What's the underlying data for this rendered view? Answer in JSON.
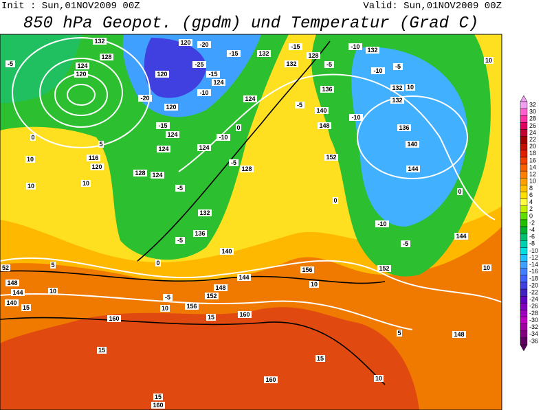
{
  "header": {
    "init": "Init : Sun,01NOV2009 00Z",
    "valid": "Valid: Sun,01NOV2009 00Z",
    "title": "850 hPa Geopot. (gpdm) und Temperatur (Grad C)"
  },
  "colorbar": {
    "levels": [
      32,
      30,
      28,
      26,
      24,
      22,
      20,
      18,
      16,
      14,
      12,
      10,
      8,
      6,
      4,
      2,
      0,
      -2,
      -4,
      -6,
      -8,
      -10,
      -12,
      -14,
      -16,
      -18,
      -20,
      -22,
      -24,
      -26,
      -28,
      -30,
      -32,
      -34,
      -36
    ],
    "colors": [
      "#f0a0f0",
      "#ff60d0",
      "#ff30a0",
      "#e00060",
      "#c00030",
      "#a00000",
      "#c01000",
      "#e02000",
      "#f04000",
      "#f86000",
      "#ff8000",
      "#ffa000",
      "#ffc000",
      "#ffe000",
      "#ffff40",
      "#c0f000",
      "#60e000",
      "#20c000",
      "#00b030",
      "#00c070",
      "#00d0b0",
      "#00e0e0",
      "#20c0ff",
      "#40a0ff",
      "#4080ff",
      "#4060ff",
      "#4040e0",
      "#4020c0",
      "#6000c0",
      "#8000c0",
      "#a000c0",
      "#c000c0",
      "#a000a0",
      "#800080",
      "#600060"
    ]
  },
  "map": {
    "labels": [
      "132",
      "128",
      "124",
      "120",
      "-5",
      "120",
      "-20",
      "-15",
      "-25",
      "-15",
      "124",
      "120",
      "-10",
      "-20",
      "120",
      "-15",
      "124",
      "-10",
      "124",
      "124",
      "-5",
      "128",
      "124",
      "-5",
      "128",
      "132",
      "136",
      "-5",
      "140",
      "0",
      "144",
      "148",
      "152",
      "156",
      "160",
      "160",
      "15",
      "10",
      "-5",
      "5",
      "10",
      "15",
      "148",
      "144",
      "140",
      "52",
      "15",
      "15",
      "160",
      "15",
      "160",
      "10",
      "148",
      "5",
      "10",
      "156",
      "152",
      "-5",
      "-10",
      "144",
      "10",
      "-10",
      "-10",
      "-5",
      "-10",
      "132",
      "132",
      "10",
      "132",
      "136",
      "140",
      "144",
      "0",
      "152",
      "148",
      "140",
      "136",
      "-5",
      "132",
      "128",
      "-15",
      "132",
      "124",
      "0",
      "-5",
      "0",
      "10",
      "10",
      "10",
      "10",
      "116",
      "120",
      "0",
      "5"
    ]
  }
}
